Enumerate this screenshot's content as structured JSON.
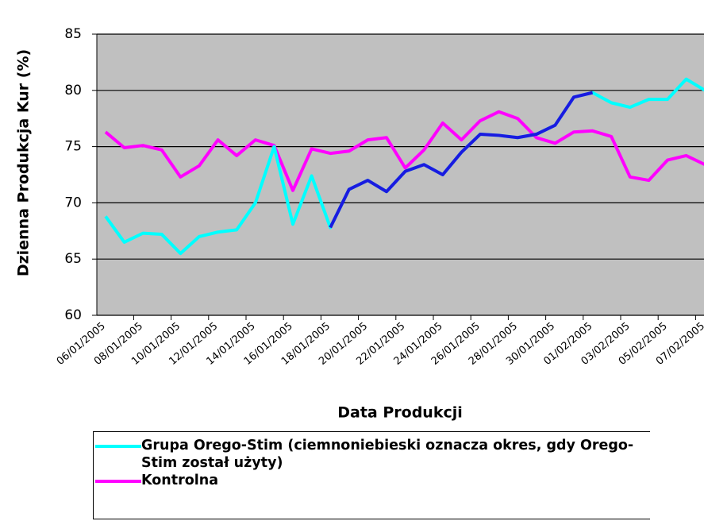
{
  "chart_data": {
    "type": "line",
    "y_label": "Dzienna Produkcja Kur (%)",
    "x_label": "Data Produkcji",
    "categories": [
      "06/01/2005",
      null,
      "08/01/2005",
      null,
      "10/01/2005",
      null,
      "12/01/2005",
      null,
      "14/01/2005",
      null,
      "16/01/2005",
      null,
      "18/01/2005",
      null,
      "20/01/2005",
      null,
      "22/01/2005",
      null,
      "24/01/2005",
      null,
      "26/01/2005",
      null,
      "28/01/2005",
      null,
      "30/01/2005",
      null,
      "01/02/2005",
      null,
      "03/02/2005",
      null,
      "05/02/2005",
      null,
      "07/02/2005"
    ],
    "series": [
      {
        "name": "Grupa Orego-Stim (ciemnoniebieski oznacza okres, gdy Orego-Stim został użyty)",
        "color": "#00ffff",
        "highlight": {
          "color": "#1a1ae0",
          "from": 12,
          "to": 26
        },
        "values": [
          68.8,
          66.5,
          67.3,
          67.2,
          65.5,
          67.0,
          67.4,
          67.6,
          70.0,
          75.0,
          68.1,
          72.4,
          67.8,
          71.2,
          72.0,
          71.0,
          72.8,
          73.4,
          72.5,
          74.5,
          76.1,
          76.0,
          75.8,
          76.1,
          76.9,
          79.4,
          79.8,
          78.9,
          78.5,
          79.2,
          79.2,
          81.0,
          80.0
        ]
      },
      {
        "name": "Kontrolna",
        "color": "#ff00ff",
        "values": [
          76.3,
          74.9,
          75.1,
          74.7,
          72.3,
          73.3,
          75.6,
          74.2,
          75.6,
          75.1,
          71.1,
          74.8,
          74.4,
          74.6,
          75.6,
          75.8,
          73.1,
          74.7,
          77.1,
          75.6,
          77.3,
          78.1,
          77.5,
          75.8,
          75.3,
          76.3,
          76.4,
          75.9,
          72.3,
          72.0,
          73.8,
          74.2,
          73.4
        ]
      }
    ],
    "ylim": [
      60,
      85
    ],
    "yticks": [
      60,
      65,
      70,
      75,
      80,
      85
    ],
    "grid": true,
    "plot_background": "#c0c0c0"
  }
}
